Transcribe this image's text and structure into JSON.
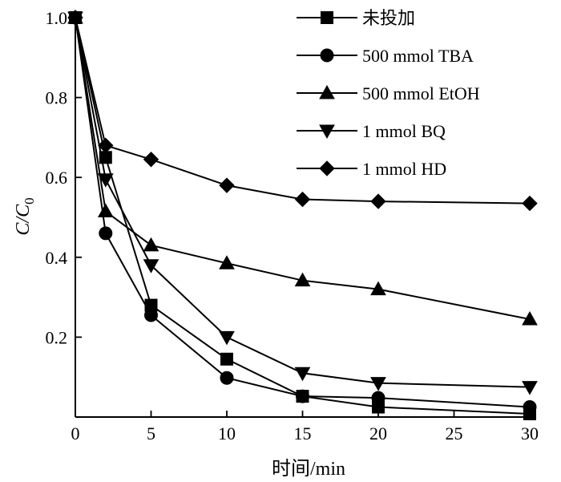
{
  "chart_data": {
    "type": "line",
    "xlabel": "时间/min",
    "ylabel_main": "C/C",
    "ylabel_sub": "0",
    "xlim": [
      0,
      30
    ],
    "ylim": [
      0,
      1.0
    ],
    "xticks": [
      0,
      5,
      10,
      15,
      20,
      25,
      30
    ],
    "xtick_labels": [
      "0",
      "5",
      "10",
      "15",
      "20",
      "25",
      "30"
    ],
    "yticks": [
      0.2,
      0.4,
      0.6,
      0.8,
      1.0
    ],
    "ytick_labels": [
      "0.2",
      "0.4",
      "0.6",
      "0.8",
      "1.0"
    ],
    "legend_position": "top-right",
    "series": [
      {
        "name": "未投加",
        "marker": "square",
        "x": [
          0,
          2,
          5,
          10,
          15,
          20,
          30
        ],
        "y": [
          1.0,
          0.65,
          0.28,
          0.145,
          0.052,
          0.025,
          0.008
        ]
      },
      {
        "name": "500 mmol TBA",
        "marker": "circle",
        "x": [
          0,
          2,
          5,
          10,
          15,
          20,
          30
        ],
        "y": [
          1.0,
          0.46,
          0.255,
          0.098,
          0.052,
          0.048,
          0.025
        ]
      },
      {
        "name": "500 mmol EtOH",
        "marker": "triangle-up",
        "x": [
          0,
          2,
          5,
          10,
          15,
          20,
          30
        ],
        "y": [
          1.0,
          0.515,
          0.43,
          0.385,
          0.342,
          0.32,
          0.245
        ]
      },
      {
        "name": "1 mmol BQ",
        "marker": "triangle-down",
        "x": [
          0,
          2,
          5,
          10,
          15,
          20,
          30
        ],
        "y": [
          1.0,
          0.595,
          0.38,
          0.2,
          0.11,
          0.085,
          0.075
        ]
      },
      {
        "name": "1 mmol HD",
        "marker": "diamond",
        "x": [
          0,
          2,
          5,
          10,
          15,
          20,
          30
        ],
        "y": [
          1.0,
          0.68,
          0.645,
          0.58,
          0.545,
          0.54,
          0.535
        ]
      }
    ]
  }
}
